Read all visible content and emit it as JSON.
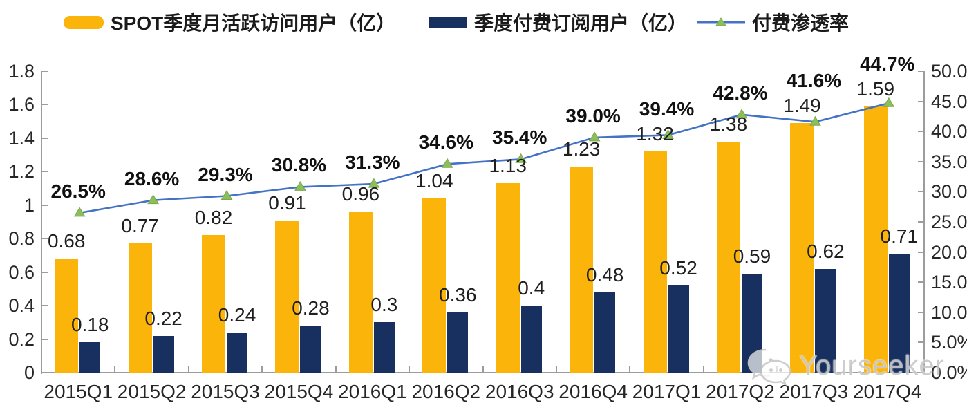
{
  "legend": [
    {
      "label": "SPOT季度月活跃访问用户（亿）",
      "type": "bar",
      "color": "#FAB40A"
    },
    {
      "label": "季度付费订阅用户（亿）",
      "type": "bar",
      "color": "#17305F"
    },
    {
      "label": "付费渗透率",
      "type": "line",
      "color": "#4472C4",
      "marker_color": "#8CBE5A"
    }
  ],
  "watermark": {
    "label": "Yourseeker",
    "icon": "wechat-icon"
  },
  "chart_data": {
    "type": "bar",
    "subtype": "bar+line combo, dual axis",
    "categories": [
      "2015Q1",
      "2015Q2",
      "2015Q3",
      "2015Q4",
      "2016Q1",
      "2016Q2",
      "2016Q3",
      "2016Q4",
      "2017Q1",
      "2017Q2",
      "2017Q3",
      "2017Q4"
    ],
    "series": [
      {
        "name": "SPOT季度月活跃访问用户（亿）",
        "type": "bar",
        "axis": "left",
        "color": "#FAB40A",
        "values": [
          0.68,
          0.77,
          0.82,
          0.91,
          0.96,
          1.04,
          1.13,
          1.23,
          1.32,
          1.38,
          1.49,
          1.59
        ],
        "labels": [
          "0.68",
          "0.77",
          "0.82",
          "0.91",
          "0.96",
          "1.04",
          "1.13",
          "1.23",
          "1.32",
          "1.38",
          "1.49",
          "1.59"
        ]
      },
      {
        "name": "季度付费订阅用户（亿）",
        "type": "bar",
        "axis": "left",
        "color": "#17305F",
        "values": [
          0.18,
          0.22,
          0.24,
          0.28,
          0.3,
          0.36,
          0.4,
          0.48,
          0.52,
          0.59,
          0.62,
          0.71
        ],
        "labels": [
          "0.18",
          "0.22",
          "0.24",
          "0.28",
          "0.3",
          "0.36",
          "0.4",
          "0.48",
          "0.52",
          "0.59",
          "0.62",
          "0.71"
        ]
      },
      {
        "name": "付费渗透率",
        "type": "line",
        "axis": "right",
        "color": "#4472C4",
        "marker": "triangle-up",
        "marker_color": "#8CBE5A",
        "values": [
          26.5,
          28.6,
          29.3,
          30.8,
          31.3,
          34.6,
          35.4,
          39.0,
          39.4,
          42.8,
          41.6,
          44.7
        ],
        "labels": [
          "26.5%",
          "28.6%",
          "29.3%",
          "30.8%",
          "31.3%",
          "34.6%",
          "35.4%",
          "39.0%",
          "39.4%",
          "42.8%",
          "41.6%",
          "44.7%"
        ]
      }
    ],
    "left_axis": {
      "min": 0,
      "max": 1.8,
      "step": 0.2,
      "tick_labels": [
        "1.8",
        "1.6",
        "1.4",
        "1.2",
        "1",
        "0.8",
        "0.6",
        "0.4",
        "0.2",
        "0"
      ]
    },
    "right_axis": {
      "min": 0,
      "max": 50,
      "step": 5,
      "tick_labels": [
        "50.0%",
        "45.0%",
        "40.0%",
        "35.0%",
        "30.0%",
        "25.0%",
        "20.0%",
        "15.0%",
        "10.0%",
        "5.0%",
        "0.0%"
      ]
    },
    "grid": false,
    "legend_position": "top",
    "title": ""
  }
}
